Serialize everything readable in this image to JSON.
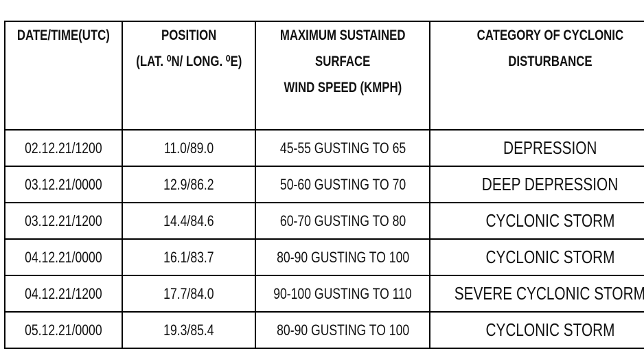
{
  "table": {
    "headers": [
      [
        "DATE/TIME(UTC)"
      ],
      [
        "POSITION",
        "(LAT. ⁰N/ LONG. ⁰E)"
      ],
      [
        "MAXIMUM SUSTAINED",
        "SURFACE",
        "WIND SPEED (KMPH)"
      ],
      [
        "CATEGORY OF CYCLONIC",
        "DISTURBANCE"
      ]
    ],
    "rows": [
      [
        "02.12.21/1200",
        "11.0/89.0",
        "45-55 GUSTING TO 65",
        "DEPRESSION"
      ],
      [
        "03.12.21/0000",
        "12.9/86.2",
        "50-60 GUSTING TO 70",
        "DEEP DEPRESSION"
      ],
      [
        "03.12.21/1200",
        "14.4/84.6",
        "60-70 GUSTING TO 80",
        "CYCLONIC STORM"
      ],
      [
        "04.12.21/0000",
        "16.1/83.7",
        "80-90 GUSTING TO 100",
        "CYCLONIC STORM"
      ],
      [
        "04.12.21/1200",
        "17.7/84.0",
        "90-100 GUSTING TO 110",
        "SEVERE CYCLONIC STORM"
      ],
      [
        "05.12.21/0000",
        "19.3/85.4",
        "80-90 GUSTING TO 100",
        "CYCLONIC STORM"
      ]
    ]
  }
}
